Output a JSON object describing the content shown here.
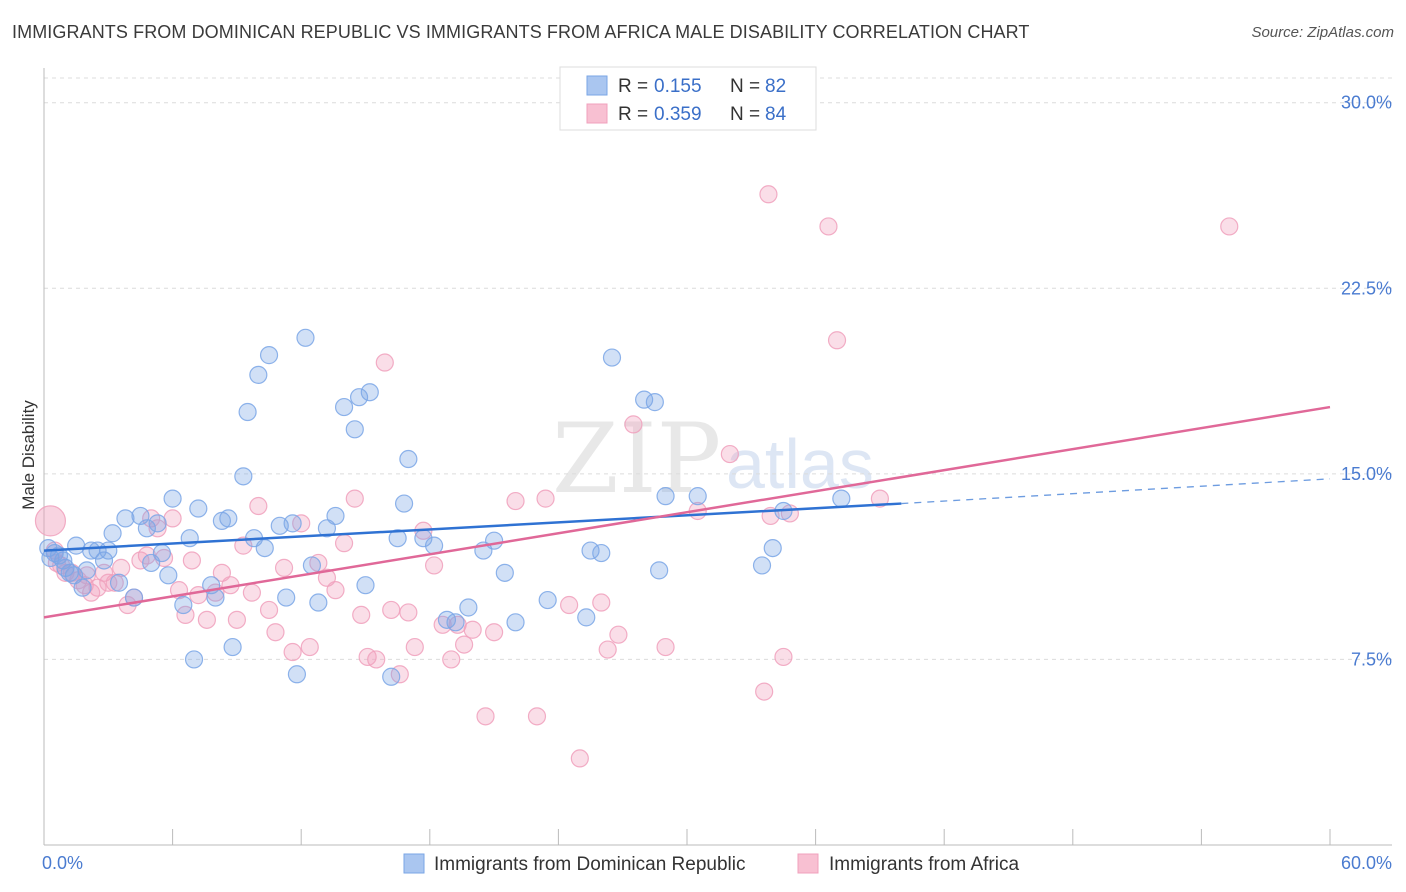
{
  "header": {
    "title": "IMMIGRANTS FROM DOMINICAN REPUBLIC VS IMMIGRANTS FROM AFRICA MALE DISABILITY CORRELATION CHART",
    "source": "Source: ZipAtlas.com"
  },
  "colors": {
    "blue": "#7aa6e6",
    "blue_line": "#2f72d3",
    "pink": "#f0a0bc",
    "pink_line": "#e06898",
    "axis_label": "#4a7bd0"
  },
  "watermark": {
    "zip": "ZIP",
    "atlas": "atlas"
  },
  "legend": {
    "rows": [
      {
        "r_label": "R =",
        "r_value": "0.155",
        "n_label": "N =",
        "n_value": "82"
      },
      {
        "r_label": "R =",
        "r_value": "0.359",
        "n_label": "N =",
        "n_value": "84"
      }
    ]
  },
  "bottom_legend": {
    "items": [
      {
        "label": "Immigrants from Dominican Republic"
      },
      {
        "label": "Immigrants from Africa"
      }
    ]
  },
  "chart_data": {
    "type": "scatter",
    "title": "IMMIGRANTS FROM DOMINICAN REPUBLIC VS IMMIGRANTS FROM AFRICA MALE DISABILITY CORRELATION CHART",
    "xlabel": "",
    "ylabel": "Male Disability",
    "xlim": [
      0,
      60
    ],
    "ylim": [
      0,
      31
    ],
    "x_tick_labels": [
      "0.0%",
      "60.0%"
    ],
    "y_ticks": [
      7.5,
      15.0,
      22.5,
      30.0
    ],
    "y_tick_labels": [
      "7.5%",
      "15.0%",
      "22.5%",
      "30.0%"
    ],
    "grid": true,
    "legend_position": "top-center",
    "series": [
      {
        "name": "Immigrants from Dominican Republic",
        "R": 0.155,
        "N": 82,
        "trend": {
          "x0": 0,
          "y0": 11.9,
          "x1": 40,
          "y1": 13.8,
          "dashed_to_x": 60,
          "dashed_to_y": 14.8
        },
        "points": [
          [
            0.3,
            11.6
          ],
          [
            0.5,
            11.8
          ],
          [
            0.7,
            11.7
          ],
          [
            0.9,
            11.5
          ],
          [
            1.0,
            11.2
          ],
          [
            1.2,
            11.0
          ],
          [
            1.4,
            10.9
          ],
          [
            1.5,
            12.1
          ],
          [
            1.8,
            10.4
          ],
          [
            2.0,
            11.1
          ],
          [
            2.2,
            11.9
          ],
          [
            2.5,
            11.9
          ],
          [
            2.8,
            11.5
          ],
          [
            3.0,
            11.9
          ],
          [
            3.2,
            12.6
          ],
          [
            3.5,
            10.6
          ],
          [
            3.8,
            13.2
          ],
          [
            4.2,
            10.0
          ],
          [
            4.5,
            13.3
          ],
          [
            4.8,
            12.8
          ],
          [
            5.0,
            11.4
          ],
          [
            5.3,
            13.0
          ],
          [
            5.5,
            11.8
          ],
          [
            5.8,
            10.9
          ],
          [
            6.0,
            14.0
          ],
          [
            6.5,
            9.7
          ],
          [
            6.8,
            12.4
          ],
          [
            7.0,
            7.5
          ],
          [
            7.2,
            13.6
          ],
          [
            7.8,
            10.5
          ],
          [
            8.0,
            10.0
          ],
          [
            8.3,
            13.1
          ],
          [
            8.6,
            13.2
          ],
          [
            8.8,
            8.0
          ],
          [
            9.3,
            14.9
          ],
          [
            9.5,
            17.5
          ],
          [
            9.8,
            12.4
          ],
          [
            10.0,
            19.0
          ],
          [
            10.3,
            12.0
          ],
          [
            10.5,
            19.8
          ],
          [
            11.0,
            12.9
          ],
          [
            11.3,
            10.0
          ],
          [
            11.6,
            13.0
          ],
          [
            11.8,
            6.9
          ],
          [
            12.2,
            20.5
          ],
          [
            12.5,
            11.3
          ],
          [
            12.8,
            9.8
          ],
          [
            13.2,
            12.8
          ],
          [
            13.6,
            13.3
          ],
          [
            14.0,
            17.7
          ],
          [
            14.5,
            16.8
          ],
          [
            14.7,
            18.1
          ],
          [
            15.2,
            18.3
          ],
          [
            15.0,
            10.5
          ],
          [
            16.2,
            6.8
          ],
          [
            16.5,
            12.4
          ],
          [
            16.8,
            13.8
          ],
          [
            17.0,
            15.6
          ],
          [
            17.7,
            12.4
          ],
          [
            18.2,
            12.1
          ],
          [
            18.8,
            9.1
          ],
          [
            19.2,
            9.0
          ],
          [
            19.8,
            9.6
          ],
          [
            20.5,
            11.9
          ],
          [
            21.0,
            12.3
          ],
          [
            21.5,
            11.0
          ],
          [
            22.0,
            9.0
          ],
          [
            23.5,
            9.9
          ],
          [
            25.3,
            9.2
          ],
          [
            25.5,
            11.9
          ],
          [
            26.0,
            11.8
          ],
          [
            26.5,
            19.7
          ],
          [
            28.0,
            18.0
          ],
          [
            28.5,
            17.9
          ],
          [
            28.7,
            11.1
          ],
          [
            29.0,
            14.1
          ],
          [
            30.5,
            14.1
          ],
          [
            33.5,
            11.3
          ],
          [
            34.0,
            12.0
          ],
          [
            34.5,
            13.5
          ],
          [
            37.2,
            14.0
          ],
          [
            0.2,
            12.0
          ]
        ]
      },
      {
        "name": "Immigrants from Africa",
        "R": 0.359,
        "N": 84,
        "trend": {
          "x0": 0,
          "y0": 9.2,
          "x1": 60,
          "y1": 17.7
        },
        "points": [
          [
            0.3,
            13.1
          ],
          [
            0.5,
            11.9
          ],
          [
            0.8,
            11.3
          ],
          [
            1.0,
            11.0
          ],
          [
            1.3,
            11.0
          ],
          [
            1.6,
            10.7
          ],
          [
            1.9,
            10.5
          ],
          [
            2.2,
            10.2
          ],
          [
            2.5,
            10.4
          ],
          [
            2.8,
            11.0
          ],
          [
            3.0,
            10.6
          ],
          [
            3.3,
            10.6
          ],
          [
            3.6,
            11.2
          ],
          [
            3.9,
            9.7
          ],
          [
            4.2,
            10.0
          ],
          [
            4.5,
            11.5
          ],
          [
            4.8,
            11.7
          ],
          [
            5.0,
            13.2
          ],
          [
            5.3,
            12.8
          ],
          [
            5.6,
            11.6
          ],
          [
            6.0,
            13.2
          ],
          [
            6.3,
            10.3
          ],
          [
            6.6,
            9.3
          ],
          [
            6.9,
            11.5
          ],
          [
            7.2,
            10.1
          ],
          [
            7.6,
            9.1
          ],
          [
            8.0,
            10.2
          ],
          [
            8.3,
            11.0
          ],
          [
            8.7,
            10.5
          ],
          [
            9.0,
            9.1
          ],
          [
            9.3,
            12.1
          ],
          [
            9.7,
            10.2
          ],
          [
            10.0,
            13.7
          ],
          [
            10.5,
            9.5
          ],
          [
            10.8,
            8.6
          ],
          [
            11.2,
            11.2
          ],
          [
            11.6,
            7.8
          ],
          [
            12.0,
            13.0
          ],
          [
            12.4,
            8.0
          ],
          [
            12.8,
            11.4
          ],
          [
            13.2,
            10.8
          ],
          [
            13.6,
            10.3
          ],
          [
            14.0,
            12.2
          ],
          [
            14.5,
            14.0
          ],
          [
            14.8,
            9.3
          ],
          [
            15.1,
            7.6
          ],
          [
            15.5,
            7.5
          ],
          [
            15.9,
            19.5
          ],
          [
            16.2,
            9.5
          ],
          [
            16.6,
            6.9
          ],
          [
            17.0,
            9.4
          ],
          [
            17.3,
            8.0
          ],
          [
            17.7,
            12.7
          ],
          [
            18.2,
            11.3
          ],
          [
            18.6,
            8.9
          ],
          [
            19.0,
            7.5
          ],
          [
            19.3,
            8.9
          ],
          [
            19.6,
            8.1
          ],
          [
            20.0,
            8.7
          ],
          [
            20.6,
            5.2
          ],
          [
            21.0,
            8.6
          ],
          [
            22.0,
            13.9
          ],
          [
            23.0,
            5.2
          ],
          [
            23.4,
            14.0
          ],
          [
            24.5,
            9.7
          ],
          [
            25.0,
            3.5
          ],
          [
            26.0,
            9.8
          ],
          [
            26.3,
            7.9
          ],
          [
            26.8,
            8.5
          ],
          [
            27.5,
            17.0
          ],
          [
            29.0,
            8.0
          ],
          [
            30.5,
            13.5
          ],
          [
            32.0,
            15.8
          ],
          [
            33.6,
            6.2
          ],
          [
            33.8,
            26.3
          ],
          [
            33.9,
            13.3
          ],
          [
            34.5,
            7.6
          ],
          [
            34.8,
            13.4
          ],
          [
            36.6,
            25.0
          ],
          [
            37.0,
            20.4
          ],
          [
            39.0,
            14.0
          ],
          [
            55.3,
            25.0
          ],
          [
            0.6,
            11.4
          ],
          [
            2.0,
            10.9
          ]
        ]
      }
    ]
  }
}
